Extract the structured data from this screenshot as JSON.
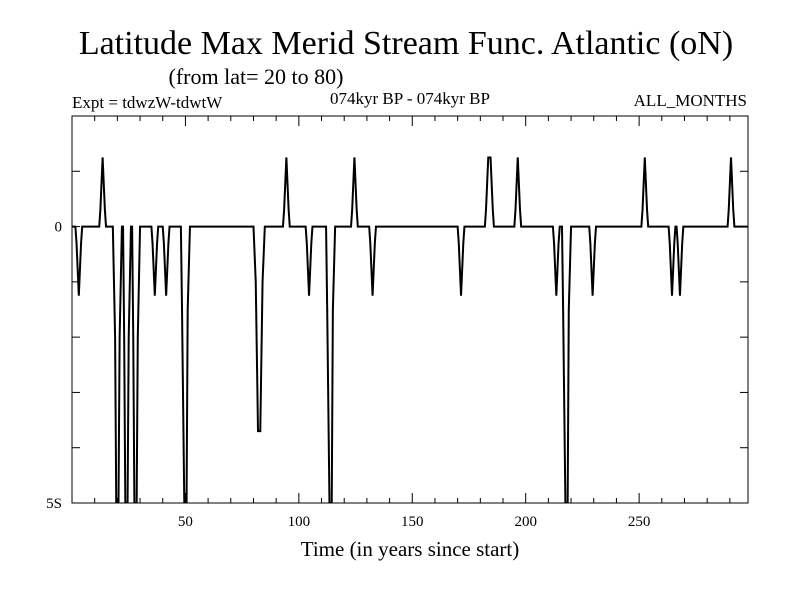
{
  "chart_data": {
    "type": "line",
    "title": "Latitude Max Merid Stream Func. Atlantic (oN)",
    "subtitle": "(from lat= 20 to 80)",
    "experiment": "Expt = tdwzW-tdwtW",
    "period": "074kyr BP - 074kyr BP",
    "season": "ALL_MONTHS",
    "xlabel": "Time (in years since start)",
    "ylabel": "",
    "xlim": [
      0,
      298
    ],
    "ylim": [
      -5,
      2
    ],
    "grid": false,
    "x_ticks": [
      {
        "value": 50,
        "label": "50"
      },
      {
        "value": 100,
        "label": "100"
      },
      {
        "value": 150,
        "label": "150"
      },
      {
        "value": 200,
        "label": "200"
      },
      {
        "value": 250,
        "label": "250"
      }
    ],
    "y_ticks": [
      {
        "value": 0,
        "label": "0"
      },
      {
        "value": -5,
        "label": "5S"
      }
    ],
    "series": [
      {
        "values": [
          [
            0,
            0
          ],
          [
            1.5,
            0
          ],
          [
            2,
            -0.3
          ],
          [
            3,
            -1.25
          ],
          [
            4,
            -0.3
          ],
          [
            4.5,
            0
          ],
          [
            12,
            0
          ],
          [
            12.5,
            0.3
          ],
          [
            13.5,
            1.25
          ],
          [
            14.5,
            0.3
          ],
          [
            15,
            0
          ],
          [
            18,
            0
          ],
          [
            19,
            -2
          ],
          [
            19.5,
            -5
          ],
          [
            20.5,
            -5
          ],
          [
            21,
            -2
          ],
          [
            22,
            0
          ],
          [
            22.5,
            0
          ],
          [
            23,
            -2
          ],
          [
            23.5,
            -5
          ],
          [
            24.5,
            -5
          ],
          [
            25,
            -2
          ],
          [
            26,
            0
          ],
          [
            26.5,
            0
          ],
          [
            27,
            -2
          ],
          [
            27.5,
            -5
          ],
          [
            28.5,
            -5
          ],
          [
            29,
            -2
          ],
          [
            30,
            0
          ],
          [
            35,
            0
          ],
          [
            35.5,
            -0.3
          ],
          [
            36.5,
            -1.25
          ],
          [
            37.5,
            -0.3
          ],
          [
            38,
            0
          ],
          [
            40,
            0
          ],
          [
            40.5,
            -0.3
          ],
          [
            41.5,
            -1.25
          ],
          [
            42.5,
            -0.3
          ],
          [
            43,
            0
          ],
          [
            48,
            0
          ],
          [
            48.5,
            -1.5
          ],
          [
            49.5,
            -5
          ],
          [
            50.5,
            -5
          ],
          [
            51,
            -1.5
          ],
          [
            52,
            0
          ],
          [
            80,
            0
          ],
          [
            81,
            -1
          ],
          [
            82,
            -3.7
          ],
          [
            83,
            -3.7
          ],
          [
            84,
            -1
          ],
          [
            85,
            0
          ],
          [
            93,
            0
          ],
          [
            93.5,
            0.3
          ],
          [
            94.5,
            1.25
          ],
          [
            95.5,
            0.3
          ],
          [
            96,
            0
          ],
          [
            103,
            0
          ],
          [
            103.5,
            -0.3
          ],
          [
            104.5,
            -1.25
          ],
          [
            105.5,
            -0.3
          ],
          [
            106,
            0
          ],
          [
            112,
            0
          ],
          [
            112.5,
            -1.5
          ],
          [
            113.5,
            -5
          ],
          [
            114.5,
            -5
          ],
          [
            115,
            -1.5
          ],
          [
            116,
            0
          ],
          [
            123,
            0
          ],
          [
            123.5,
            0.3
          ],
          [
            124.5,
            1.25
          ],
          [
            125.5,
            0.3
          ],
          [
            126,
            0
          ],
          [
            131,
            0
          ],
          [
            131.5,
            -0.3
          ],
          [
            132.5,
            -1.25
          ],
          [
            133.5,
            -0.3
          ],
          [
            134,
            0
          ],
          [
            170,
            0
          ],
          [
            170.5,
            -0.3
          ],
          [
            171.5,
            -1.25
          ],
          [
            172.5,
            -0.3
          ],
          [
            173,
            0
          ],
          [
            182,
            0
          ],
          [
            182.5,
            0.3
          ],
          [
            183.5,
            1.25
          ],
          [
            184.5,
            1.25
          ],
          [
            185.5,
            0.3
          ],
          [
            186,
            0
          ],
          [
            195,
            0
          ],
          [
            195.5,
            0.3
          ],
          [
            196.5,
            1.25
          ],
          [
            197.5,
            0.3
          ],
          [
            198,
            0
          ],
          [
            212,
            0
          ],
          [
            212.5,
            -0.3
          ],
          [
            213.5,
            -1.25
          ],
          [
            214.5,
            -0.3
          ],
          [
            215,
            0
          ],
          [
            216,
            0
          ],
          [
            216.5,
            -1.5
          ],
          [
            217.5,
            -5
          ],
          [
            218.5,
            -5
          ],
          [
            219,
            -1.5
          ],
          [
            220,
            0
          ],
          [
            228,
            0
          ],
          [
            228.5,
            -0.3
          ],
          [
            229.5,
            -1.25
          ],
          [
            230.5,
            -0.3
          ],
          [
            231,
            0
          ],
          [
            251,
            0
          ],
          [
            251.5,
            0.3
          ],
          [
            252.5,
            1.25
          ],
          [
            253.5,
            0.3
          ],
          [
            254,
            0
          ],
          [
            263,
            0
          ],
          [
            263.5,
            -0.3
          ],
          [
            264.5,
            -1.25
          ],
          [
            265.5,
            -0.3
          ],
          [
            266,
            0
          ],
          [
            266.5,
            0
          ],
          [
            267,
            -0.3
          ],
          [
            268,
            -1.25
          ],
          [
            269,
            -0.3
          ],
          [
            269.5,
            0
          ],
          [
            289,
            0
          ],
          [
            289.5,
            0.3
          ],
          [
            290.5,
            1.25
          ],
          [
            291.5,
            0.3
          ],
          [
            292,
            0
          ],
          [
            298,
            0
          ]
        ]
      }
    ]
  }
}
